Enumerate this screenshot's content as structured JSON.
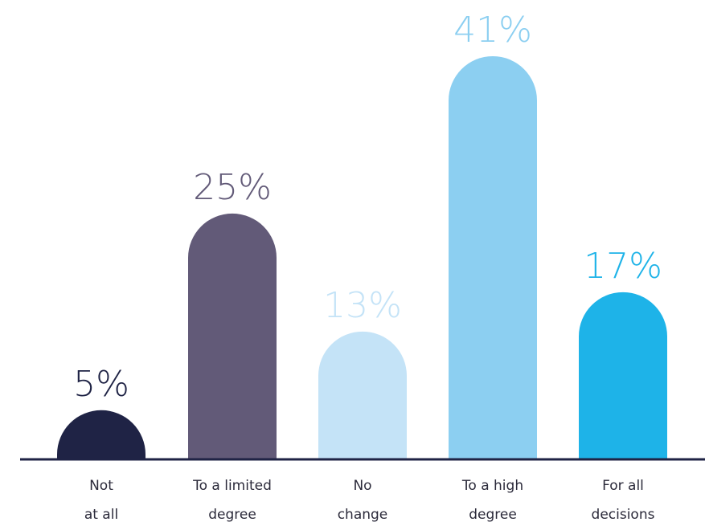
{
  "chart_data": {
    "type": "bar",
    "title": "",
    "xlabel": "",
    "ylabel": "",
    "ylim": [
      0,
      41
    ],
    "value_suffix": "%",
    "categories": [
      [
        "Not",
        "at all"
      ],
      [
        "To a limited",
        "degree"
      ],
      [
        "No",
        "change"
      ],
      [
        "To a high",
        "degree"
      ],
      [
        "For all",
        "decisions"
      ]
    ],
    "values": [
      5,
      25,
      13,
      41,
      17
    ],
    "value_labels": [
      "5%",
      "25%",
      "13%",
      "41%",
      "17%"
    ],
    "colors": [
      "#1f2345",
      "#625a78",
      "#c4e3f7",
      "#8ccff1",
      "#1eb3e8"
    ],
    "label_colors": [
      "#1f2345",
      "#625a78",
      "#c4e3f7",
      "#8ccff1",
      "#1eb3e8"
    ],
    "axis_color": "#1f2345",
    "grid": false,
    "legend": "none"
  }
}
